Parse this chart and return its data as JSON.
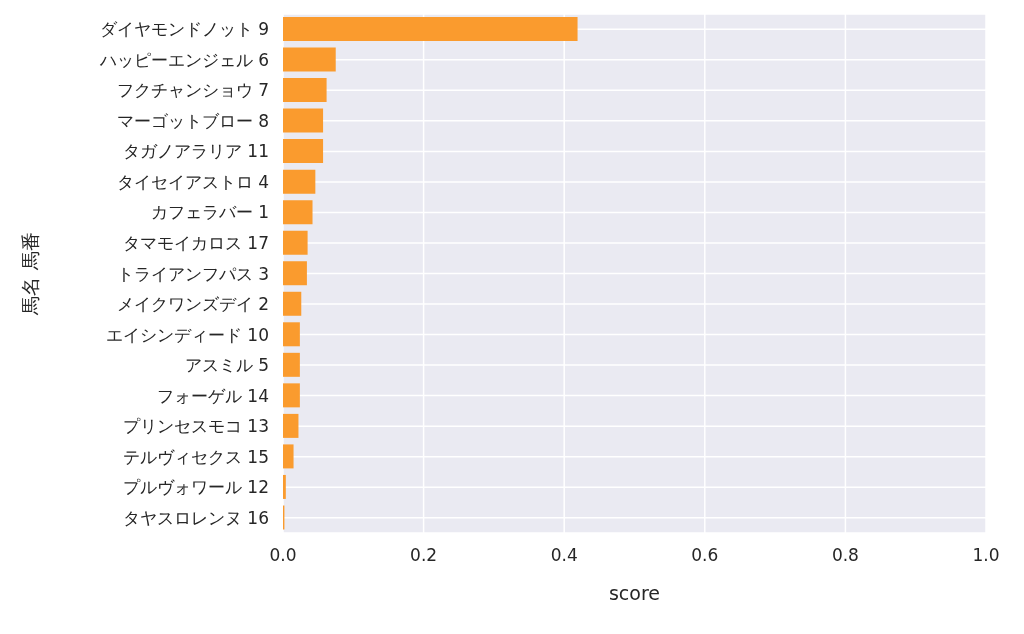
{
  "chart_data": {
    "type": "bar",
    "orientation": "horizontal",
    "xlabel": "score",
    "ylabel": "馬名 馬番",
    "categories": [
      "ダイヤモンドノット 9",
      "ハッピーエンジェル 6",
      "フクチャンショウ 7",
      "マーゴットブロー 8",
      "タガノアラリア 11",
      "タイセイアストロ 4",
      "カフェラバー 1",
      "タマモイカロス 17",
      "トライアンフパス 3",
      "メイクワンズデイ 2",
      "エイシンディード 10",
      "アスミル 5",
      "フォーゲル 14",
      "プリンセスモコ 13",
      "テルヴィセクス 15",
      "プルヴォワール 12",
      "タヤスロレンヌ 16"
    ],
    "values": [
      0.419,
      0.075,
      0.062,
      0.057,
      0.057,
      0.046,
      0.042,
      0.035,
      0.034,
      0.026,
      0.024,
      0.024,
      0.024,
      0.022,
      0.015,
      0.004,
      0.002
    ],
    "color": "#fa9b2e",
    "xlim": [
      0,
      1
    ],
    "xticks": [
      {
        "value": 0,
        "label": "0.0"
      },
      {
        "value": 0.2,
        "label": "0.2"
      },
      {
        "value": 0.4,
        "label": "0.4"
      },
      {
        "value": 0.6,
        "label": "0.6"
      },
      {
        "value": 0.8,
        "label": "0.8"
      },
      {
        "value": 1,
        "label": "1.0"
      }
    ],
    "grid": true
  }
}
